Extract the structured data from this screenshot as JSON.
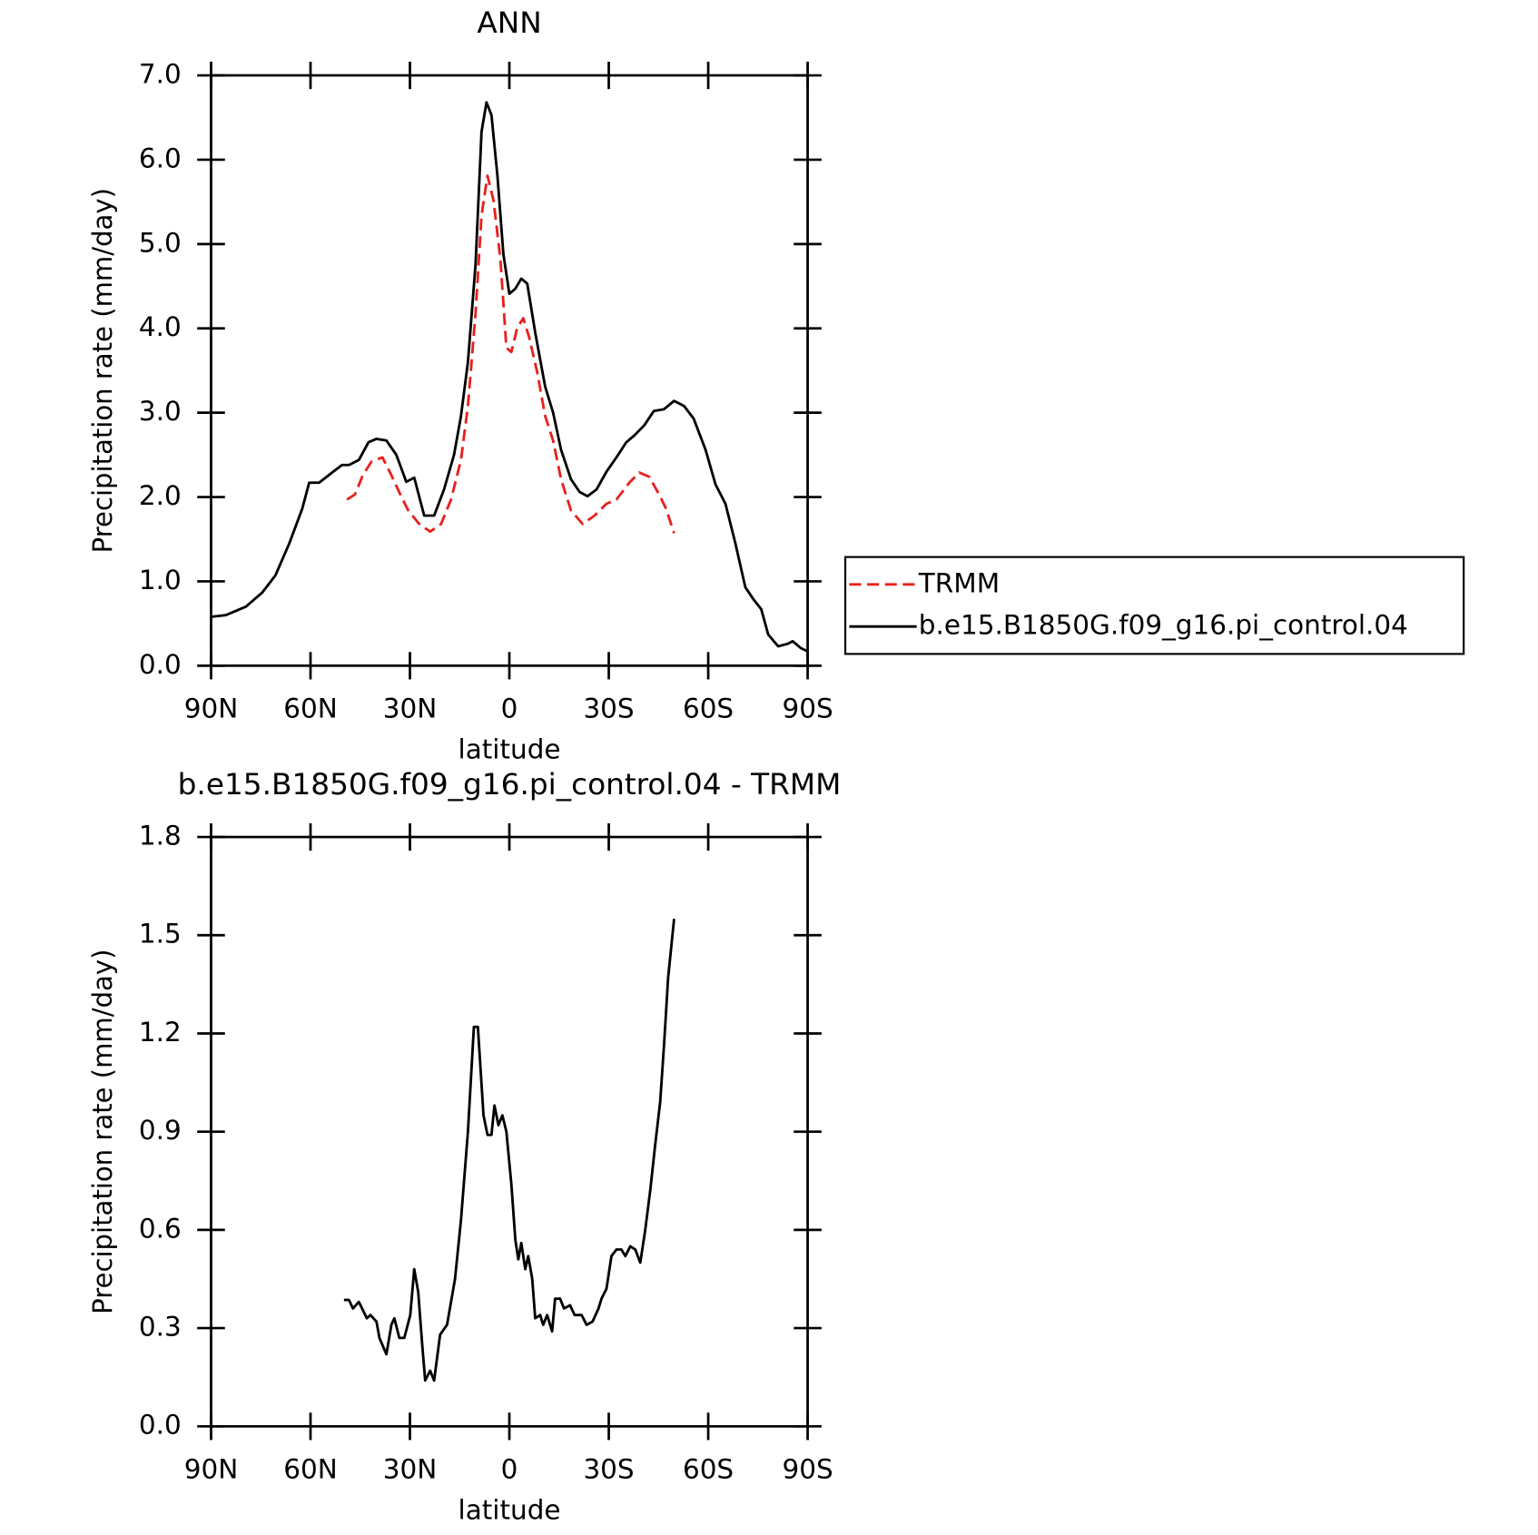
{
  "chart_data": [
    {
      "type": "line",
      "title": "ANN",
      "x_label": "latitude",
      "y_label": "Precipitation rate (mm/day)",
      "xlim": [
        90,
        -90
      ],
      "xticks": [
        {
          "value": 90,
          "label": "90N"
        },
        {
          "value": 60,
          "label": "60N"
        },
        {
          "value": 30,
          "label": "30N"
        },
        0,
        {
          "value": -30,
          "label": "30S"
        },
        {
          "value": -60,
          "label": "60S"
        },
        {
          "value": -90,
          "label": "90S"
        }
      ],
      "ylim": [
        0,
        7
      ],
      "yticks": [
        {
          "value": 0,
          "label": "0.0"
        },
        {
          "value": 1,
          "label": "1.0"
        },
        {
          "value": 2,
          "label": "2.0"
        },
        {
          "value": 3,
          "label": "3.0"
        },
        {
          "value": 4,
          "label": "4.0"
        },
        {
          "value": 5,
          "label": "5.0"
        },
        {
          "value": 6,
          "label": "6.0"
        },
        {
          "value": 7,
          "label": "7.0"
        }
      ],
      "legend": "right",
      "series": [
        {
          "name": "TRMM",
          "color": "#e8201c",
          "linestyle": "dashed",
          "x": [
            49.0,
            46.6,
            44.2,
            41.6,
            38.3,
            35.6,
            32.9,
            30.5,
            27.2,
            23.9,
            20.6,
            17.6,
            14.6,
            12.5,
            10.2,
            8.4,
            6.6,
            4.8,
            2.7,
            0.9,
            -0.6,
            -2.4,
            -4.2,
            -6.0,
            -8.4,
            -10.8,
            -13.2,
            -15.6,
            -18.6,
            -22.1,
            -25.7,
            -29.3,
            -32.3,
            -36.2,
            -39.2,
            -42.2,
            -45.2,
            -47.3,
            -49.7
          ],
          "values": [
            1.97,
            2.03,
            2.26,
            2.42,
            2.47,
            2.26,
            2.03,
            1.84,
            1.68,
            1.59,
            1.68,
            1.97,
            2.44,
            3.08,
            4.18,
            5.34,
            5.81,
            5.52,
            4.82,
            3.77,
            3.72,
            4.01,
            4.12,
            3.89,
            3.48,
            2.96,
            2.67,
            2.21,
            1.84,
            1.68,
            1.78,
            1.92,
            1.97,
            2.17,
            2.29,
            2.24,
            2.03,
            1.86,
            1.57
          ]
        },
        {
          "name": "b.e15.B1850G.f09_g16.pi_control.04",
          "color": "#000000",
          "linestyle": "solid",
          "x": [
            90,
            85.5,
            79.5,
            74.5,
            70.6,
            66.4,
            62.5,
            60.4,
            57.4,
            53.5,
            50.5,
            48.4,
            45.4,
            42.5,
            40.1,
            37.1,
            34.1,
            31.1,
            28.7,
            25.7,
            22.7,
            19.7,
            16.7,
            14.6,
            12.5,
            10.2,
            8.4,
            6.9,
            5.4,
            3.6,
            1.8,
            0,
            -1.8,
            -3.6,
            -5.4,
            -7.8,
            -10.8,
            -13.2,
            -15.6,
            -18.6,
            -21.2,
            -23.6,
            -26.3,
            -29.3,
            -32.3,
            -35.3,
            -37.7,
            -40.7,
            -43.6,
            -46.6,
            -49.7,
            -52.7,
            -55.6,
            -59.2,
            -62.2,
            -65.2,
            -68.2,
            -71.2,
            -73.6,
            -76.0,
            -78.1,
            -81.1,
            -84.0,
            -85.5,
            -87.9,
            -90
          ],
          "values": [
            0.58,
            0.6,
            0.7,
            0.87,
            1.07,
            1.45,
            1.86,
            2.17,
            2.17,
            2.29,
            2.38,
            2.38,
            2.44,
            2.65,
            2.69,
            2.67,
            2.5,
            2.18,
            2.23,
            1.78,
            1.78,
            2.09,
            2.5,
            2.96,
            3.6,
            4.76,
            6.33,
            6.68,
            6.53,
            5.81,
            4.88,
            4.41,
            4.47,
            4.59,
            4.53,
            3.95,
            3.31,
            3.0,
            2.56,
            2.21,
            2.06,
            2.01,
            2.09,
            2.3,
            2.47,
            2.65,
            2.73,
            2.85,
            3.02,
            3.04,
            3.14,
            3.08,
            2.93,
            2.56,
            2.15,
            1.92,
            1.45,
            0.93,
            0.79,
            0.67,
            0.37,
            0.23,
            0.26,
            0.29,
            0.21,
            0.17
          ]
        }
      ]
    },
    {
      "type": "line",
      "title": "b.e15.B1850G.f09_g16.pi_control.04 - TRMM",
      "x_label": "latitude",
      "y_label": "Precipitation rate (mm/day)",
      "xlim": [
        90,
        -90
      ],
      "xticks": [
        {
          "value": 90,
          "label": "90N"
        },
        {
          "value": 60,
          "label": "60N"
        },
        {
          "value": 30,
          "label": "30N"
        },
        0,
        {
          "value": -30,
          "label": "30S"
        },
        {
          "value": -60,
          "label": "60S"
        },
        {
          "value": -90,
          "label": "90S"
        }
      ],
      "ylim": [
        0,
        1.8
      ],
      "yticks": [
        {
          "value": 0,
          "label": "0.0"
        },
        0.3,
        0.6,
        0.9,
        1.2,
        1.5,
        1.8
      ],
      "series": [
        {
          "color": "#000000",
          "linestyle": "solid",
          "x": [
            49.9,
            48.4,
            47.2,
            45.4,
            43.0,
            41.9,
            40.1,
            39.2,
            37.1,
            35.6,
            34.7,
            33.2,
            31.7,
            29.9,
            28.7,
            27.5,
            26.3,
            25.4,
            23.9,
            22.7,
            20.9,
            18.8,
            16.4,
            14.6,
            12.5,
            10.7,
            9.5,
            7.8,
            6.6,
            5.4,
            4.5,
            3.3,
            2.1,
            0.9,
            -0.6,
            -1.8,
            -2.7,
            -3.6,
            -4.8,
            -5.7,
            -6.9,
            -7.8,
            -9.3,
            -10.2,
            -11.4,
            -12.9,
            -13.8,
            -15.3,
            -16.5,
            -18.3,
            -19.7,
            -21.8,
            -23.3,
            -25.1,
            -26.9,
            -27.8,
            -29.3,
            -30.8,
            -32.3,
            -33.8,
            -35.0,
            -36.5,
            -38.0,
            -39.5,
            -41.0,
            -42.5,
            -44.0,
            -45.5,
            -46.7,
            -47.9,
            -49.7
          ],
          "values": [
            0.386,
            0.386,
            0.36,
            0.38,
            0.33,
            0.34,
            0.32,
            0.27,
            0.22,
            0.31,
            0.33,
            0.27,
            0.27,
            0.34,
            0.48,
            0.41,
            0.25,
            0.14,
            0.17,
            0.14,
            0.28,
            0.31,
            0.45,
            0.63,
            0.9,
            1.22,
            1.22,
            0.95,
            0.89,
            0.89,
            0.98,
            0.92,
            0.95,
            0.9,
            0.74,
            0.57,
            0.51,
            0.56,
            0.48,
            0.52,
            0.45,
            0.33,
            0.34,
            0.31,
            0.34,
            0.29,
            0.39,
            0.39,
            0.36,
            0.37,
            0.34,
            0.34,
            0.31,
            0.32,
            0.36,
            0.39,
            0.42,
            0.52,
            0.54,
            0.54,
            0.52,
            0.55,
            0.54,
            0.5,
            0.6,
            0.72,
            0.86,
            0.99,
            1.17,
            1.37,
            1.55
          ]
        }
      ]
    }
  ]
}
